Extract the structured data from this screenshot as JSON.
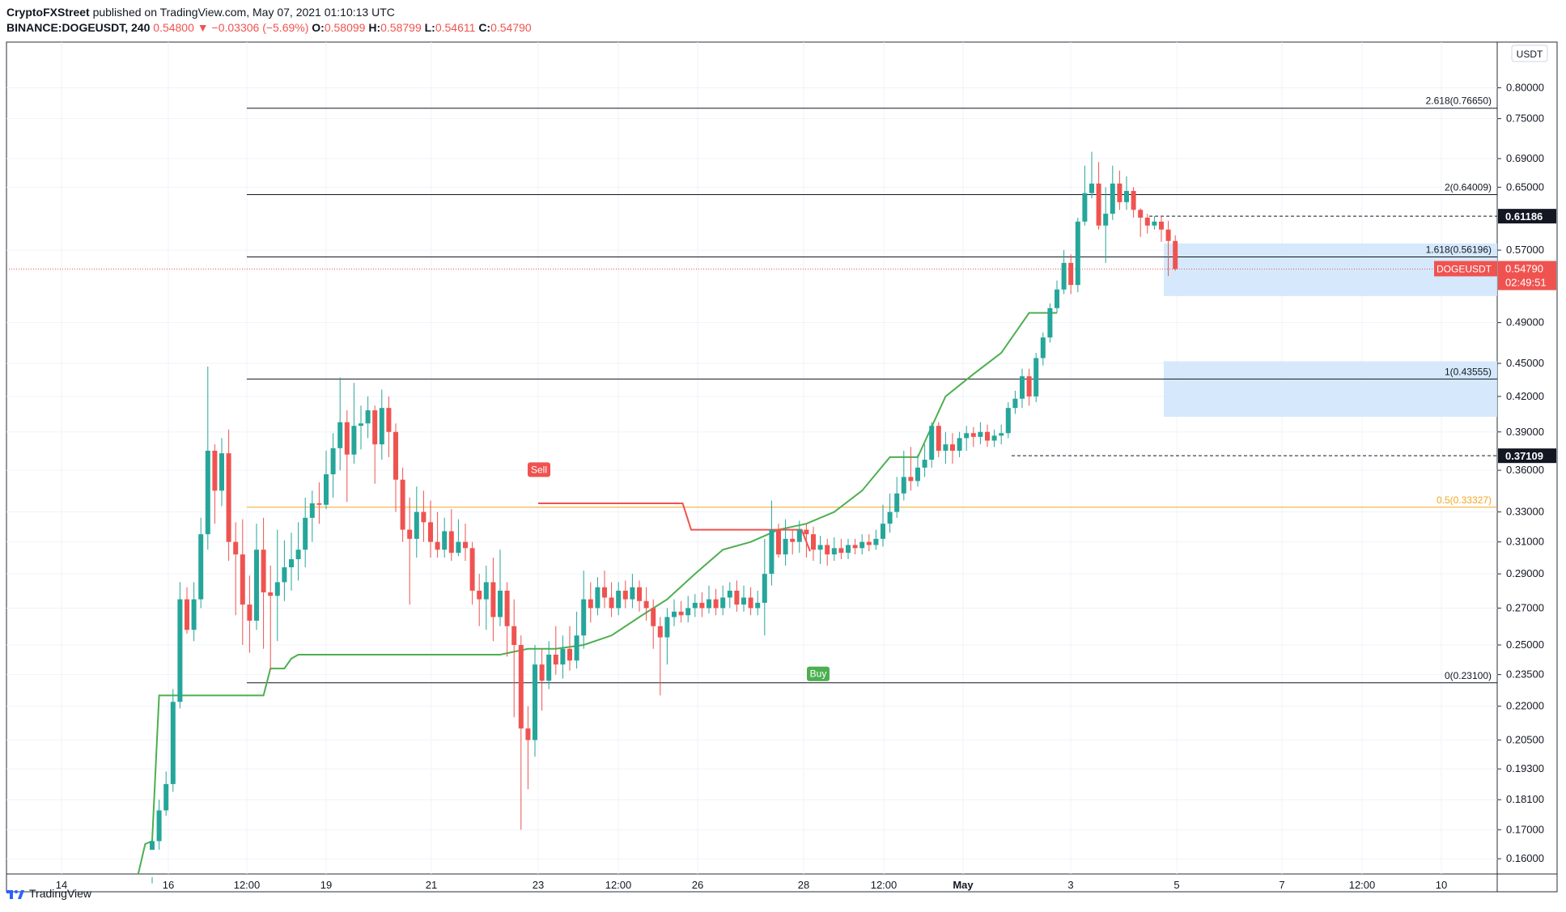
{
  "header": {
    "brand": "CryptoFXStreet",
    "published": "published on TradingView.com, May 07, 2021 01:10:13 UTC",
    "symbol": "BINANCE:DOGEUSDT, 240",
    "last": "0.54800",
    "change": "−0.03306 (−5.69%)",
    "o_label": "O:",
    "o_value": "0.58099",
    "h_label": "H:",
    "h_value": "0.58799",
    "l_label": "L:",
    "l_value": "0.54611",
    "c_label": "C:",
    "c_value": "0.54790"
  },
  "footer": {
    "logo_text": "TradingView"
  },
  "colors": {
    "up": "#26a69a",
    "down": "#ef5350",
    "support": "#4caf50",
    "resistance": "#f0524f",
    "fib05": "#f5a623",
    "zone": "#cfe5fb"
  },
  "chart_data": {
    "type": "candlestick",
    "currency": "USDT",
    "y_scale": "log",
    "y_range": [
      0.155,
      0.88
    ],
    "y_ticks": [
      "0.80000",
      "0.75000",
      "0.69000",
      "0.65000",
      "0.57000",
      "0.49000",
      "0.45000",
      "0.42000",
      "0.39000",
      "0.36000",
      "0.33000",
      "0.31000",
      "0.29000",
      "0.27000",
      "0.25000",
      "0.23500",
      "0.22000",
      "0.20500",
      "0.19300",
      "0.18100",
      "0.17000",
      "0.16000"
    ],
    "x_ticks": [
      "14",
      "16",
      "12:00",
      "19",
      "21",
      "23",
      "12:00",
      "26",
      "28",
      "12:00",
      "May",
      "3",
      "5",
      "7",
      "12:00",
      "10"
    ],
    "fib_levels": [
      {
        "label": "2.618(0.76650)",
        "value": 0.7665
      },
      {
        "label": "2(0.64009)",
        "value": 0.64009
      },
      {
        "label": "1.618(0.56196)",
        "value": 0.56196
      },
      {
        "label": "1(0.43555)",
        "value": 0.43555
      },
      {
        "label": "0.5(0.33327)",
        "value": 0.33327
      },
      {
        "label": "0(0.23100)",
        "value": 0.231
      }
    ],
    "price_labels": [
      {
        "label": "0.61186",
        "value": 0.61186
      },
      {
        "label": "0.37109",
        "value": 0.37109
      }
    ],
    "current": {
      "symbol": "DOGEUSDT",
      "value_text": "0.54790",
      "timer": "02:49:51",
      "value": 0.5479
    },
    "zones": [
      {
        "from_value": 0.5179,
        "to_value": 0.578
      },
      {
        "from_value": 0.4025,
        "to_value": 0.452
      }
    ],
    "signals": [
      {
        "label": "Sell",
        "value": 0.355
      },
      {
        "label": "Buy",
        "value": 0.241
      }
    ],
    "candles": [
      [
        0.163,
        0.166,
        0.154,
        0.152
      ],
      [
        0.166,
        0.177,
        0.181,
        0.163
      ],
      [
        0.177,
        0.187,
        0.192,
        0.175
      ],
      [
        0.187,
        0.222,
        0.228,
        0.184
      ],
      [
        0.222,
        0.275,
        0.285,
        0.219
      ],
      [
        0.275,
        0.258,
        0.282,
        0.256
      ],
      [
        0.258,
        0.275,
        0.285,
        0.252
      ],
      [
        0.275,
        0.315,
        0.326,
        0.27
      ],
      [
        0.315,
        0.375,
        0.447,
        0.305
      ],
      [
        0.375,
        0.345,
        0.38,
        0.322
      ],
      [
        0.345,
        0.373,
        0.385,
        0.334
      ],
      [
        0.373,
        0.31,
        0.392,
        0.298
      ],
      [
        0.31,
        0.302,
        0.323,
        0.266
      ],
      [
        0.302,
        0.272,
        0.325,
        0.25
      ],
      [
        0.272,
        0.263,
        0.289,
        0.246
      ],
      [
        0.263,
        0.305,
        0.322,
        0.258
      ],
      [
        0.305,
        0.279,
        0.326,
        0.248
      ],
      [
        0.279,
        0.277,
        0.295,
        0.237
      ],
      [
        0.277,
        0.285,
        0.318,
        0.252
      ],
      [
        0.285,
        0.294,
        0.311,
        0.274
      ],
      [
        0.294,
        0.299,
        0.316,
        0.28
      ],
      [
        0.299,
        0.305,
        0.323,
        0.286
      ],
      [
        0.305,
        0.326,
        0.34,
        0.294
      ],
      [
        0.326,
        0.336,
        0.345,
        0.31
      ],
      [
        0.336,
        0.335,
        0.351,
        0.322
      ],
      [
        0.335,
        0.357,
        0.375,
        0.332
      ],
      [
        0.357,
        0.377,
        0.389,
        0.34
      ],
      [
        0.377,
        0.398,
        0.437,
        0.36
      ],
      [
        0.398,
        0.372,
        0.408,
        0.337
      ],
      [
        0.372,
        0.395,
        0.432,
        0.365
      ],
      [
        0.395,
        0.397,
        0.412,
        0.376
      ],
      [
        0.397,
        0.408,
        0.42,
        0.385
      ],
      [
        0.408,
        0.38,
        0.412,
        0.35
      ],
      [
        0.38,
        0.41,
        0.426,
        0.368
      ],
      [
        0.41,
        0.39,
        0.42,
        0.37
      ],
      [
        0.39,
        0.353,
        0.397,
        0.33
      ],
      [
        0.353,
        0.318,
        0.362,
        0.31
      ],
      [
        0.318,
        0.312,
        0.34,
        0.272
      ],
      [
        0.312,
        0.33,
        0.348,
        0.3
      ],
      [
        0.33,
        0.323,
        0.345,
        0.31
      ],
      [
        0.323,
        0.31,
        0.338,
        0.3
      ],
      [
        0.31,
        0.305,
        0.33,
        0.3
      ],
      [
        0.305,
        0.317,
        0.326,
        0.3
      ],
      [
        0.317,
        0.303,
        0.332,
        0.298
      ],
      [
        0.303,
        0.31,
        0.325,
        0.301
      ],
      [
        0.31,
        0.306,
        0.322,
        0.298
      ],
      [
        0.306,
        0.28,
        0.31,
        0.272
      ],
      [
        0.28,
        0.275,
        0.29,
        0.26
      ],
      [
        0.275,
        0.285,
        0.295,
        0.258
      ],
      [
        0.285,
        0.265,
        0.3,
        0.252
      ],
      [
        0.265,
        0.28,
        0.305,
        0.26
      ],
      [
        0.28,
        0.26,
        0.285,
        0.244
      ],
      [
        0.26,
        0.25,
        0.275,
        0.215
      ],
      [
        0.25,
        0.21,
        0.255,
        0.17
      ],
      [
        0.21,
        0.205,
        0.22,
        0.185
      ],
      [
        0.205,
        0.24,
        0.25,
        0.198
      ],
      [
        0.24,
        0.232,
        0.248,
        0.218
      ],
      [
        0.232,
        0.245,
        0.252,
        0.228
      ],
      [
        0.245,
        0.24,
        0.26,
        0.235
      ],
      [
        0.24,
        0.248,
        0.255,
        0.233
      ],
      [
        0.248,
        0.242,
        0.26,
        0.237
      ],
      [
        0.242,
        0.255,
        0.268,
        0.238
      ],
      [
        0.255,
        0.275,
        0.292,
        0.248
      ],
      [
        0.275,
        0.27,
        0.285,
        0.262
      ],
      [
        0.27,
        0.282,
        0.288,
        0.266
      ],
      [
        0.282,
        0.276,
        0.292,
        0.27
      ],
      [
        0.276,
        0.27,
        0.285,
        0.265
      ],
      [
        0.27,
        0.28,
        0.285,
        0.266
      ],
      [
        0.28,
        0.275,
        0.286,
        0.27
      ],
      [
        0.275,
        0.282,
        0.29,
        0.27
      ],
      [
        0.282,
        0.274,
        0.286,
        0.268
      ],
      [
        0.274,
        0.27,
        0.282,
        0.263
      ],
      [
        0.27,
        0.26,
        0.275,
        0.248
      ],
      [
        0.26,
        0.254,
        0.265,
        0.225
      ],
      [
        0.254,
        0.265,
        0.27,
        0.24
      ],
      [
        0.265,
        0.268,
        0.275,
        0.26
      ],
      [
        0.268,
        0.266,
        0.274,
        0.262
      ],
      [
        0.266,
        0.27,
        0.277,
        0.262
      ],
      [
        0.27,
        0.273,
        0.278,
        0.265
      ],
      [
        0.273,
        0.27,
        0.279,
        0.265
      ],
      [
        0.27,
        0.275,
        0.283,
        0.267
      ],
      [
        0.275,
        0.27,
        0.281,
        0.266
      ],
      [
        0.27,
        0.276,
        0.283,
        0.266
      ],
      [
        0.276,
        0.28,
        0.285,
        0.27
      ],
      [
        0.28,
        0.272,
        0.286,
        0.268
      ],
      [
        0.272,
        0.276,
        0.283,
        0.268
      ],
      [
        0.276,
        0.27,
        0.282,
        0.266
      ],
      [
        0.27,
        0.273,
        0.28,
        0.266
      ],
      [
        0.273,
        0.29,
        0.312,
        0.255
      ],
      [
        0.29,
        0.318,
        0.338,
        0.283
      ],
      [
        0.318,
        0.302,
        0.322,
        0.3
      ],
      [
        0.302,
        0.312,
        0.325,
        0.295
      ],
      [
        0.312,
        0.31,
        0.318,
        0.302
      ],
      [
        0.31,
        0.318,
        0.324,
        0.303
      ],
      [
        0.318,
        0.315,
        0.322,
        0.3
      ],
      [
        0.315,
        0.305,
        0.32,
        0.298
      ],
      [
        0.305,
        0.308,
        0.314,
        0.296
      ],
      [
        0.308,
        0.302,
        0.312,
        0.295
      ],
      [
        0.302,
        0.306,
        0.313,
        0.298
      ],
      [
        0.306,
        0.303,
        0.312,
        0.299
      ],
      [
        0.303,
        0.308,
        0.312,
        0.299
      ],
      [
        0.308,
        0.306,
        0.312,
        0.302
      ],
      [
        0.306,
        0.31,
        0.315,
        0.302
      ],
      [
        0.31,
        0.308,
        0.315,
        0.304
      ],
      [
        0.308,
        0.312,
        0.318,
        0.305
      ],
      [
        0.312,
        0.322,
        0.335,
        0.307
      ],
      [
        0.322,
        0.33,
        0.343,
        0.316
      ],
      [
        0.33,
        0.343,
        0.355,
        0.326
      ],
      [
        0.343,
        0.355,
        0.375,
        0.338
      ],
      [
        0.355,
        0.352,
        0.378,
        0.345
      ],
      [
        0.352,
        0.362,
        0.372,
        0.348
      ],
      [
        0.362,
        0.368,
        0.38,
        0.355
      ],
      [
        0.368,
        0.395,
        0.398,
        0.362
      ],
      [
        0.395,
        0.375,
        0.398,
        0.37
      ],
      [
        0.375,
        0.38,
        0.39,
        0.365
      ],
      [
        0.38,
        0.375,
        0.389,
        0.365
      ],
      [
        0.375,
        0.385,
        0.39,
        0.37
      ],
      [
        0.385,
        0.389,
        0.395,
        0.375
      ],
      [
        0.389,
        0.386,
        0.394,
        0.378
      ],
      [
        0.386,
        0.39,
        0.398,
        0.38
      ],
      [
        0.39,
        0.383,
        0.396,
        0.378
      ],
      [
        0.383,
        0.387,
        0.392,
        0.378
      ],
      [
        0.387,
        0.389,
        0.396,
        0.38
      ],
      [
        0.389,
        0.41,
        0.415,
        0.385
      ],
      [
        0.41,
        0.418,
        0.425,
        0.405
      ],
      [
        0.418,
        0.438,
        0.445,
        0.41
      ],
      [
        0.438,
        0.42,
        0.445,
        0.412
      ],
      [
        0.42,
        0.455,
        0.46,
        0.415
      ],
      [
        0.455,
        0.475,
        0.48,
        0.448
      ],
      [
        0.475,
        0.505,
        0.51,
        0.47
      ],
      [
        0.505,
        0.525,
        0.535,
        0.5
      ],
      [
        0.525,
        0.555,
        0.57,
        0.52
      ],
      [
        0.555,
        0.53,
        0.565,
        0.52
      ],
      [
        0.53,
        0.605,
        0.61,
        0.522
      ],
      [
        0.605,
        0.642,
        0.68,
        0.6
      ],
      [
        0.642,
        0.655,
        0.7,
        0.635
      ],
      [
        0.655,
        0.6,
        0.685,
        0.595
      ],
      [
        0.6,
        0.615,
        0.65,
        0.555
      ],
      [
        0.615,
        0.655,
        0.68,
        0.607
      ],
      [
        0.655,
        0.63,
        0.673,
        0.62
      ],
      [
        0.63,
        0.645,
        0.665,
        0.62
      ],
      [
        0.645,
        0.62,
        0.65,
        0.61
      ],
      [
        0.62,
        0.61,
        0.622,
        0.586
      ],
      [
        0.61,
        0.6,
        0.615,
        0.59
      ],
      [
        0.6,
        0.605,
        0.612,
        0.595
      ],
      [
        0.605,
        0.595,
        0.612,
        0.58
      ],
      [
        0.595,
        0.581,
        0.606,
        0.54
      ],
      [
        0.581,
        0.548,
        0.588,
        0.546
      ]
    ],
    "support_line": [
      [
        0.155,
        0.165,
        0.166,
        0.225,
        0.225,
        0.225,
        0.225,
        0.225,
        0.225,
        0.225,
        0.225,
        0.225,
        0.225,
        0.225,
        0.225,
        0.225,
        0.225,
        0.225,
        0.225,
        0.238,
        0.238,
        0.238,
        0.243,
        0.245,
        0.245,
        0.245,
        0.245,
        0.245,
        0.245,
        0.245,
        0.245,
        0.245,
        0.245,
        0.245,
        0.245,
        0.245,
        0.245,
        0.245,
        0.245,
        0.245,
        0.245,
        0.245,
        0.245,
        0.245,
        0.245,
        0.245,
        0.245,
        0.245,
        0.245,
        0.245,
        0.245,
        0.245
      ]
    ],
    "resistance_line": [
      0.336,
      0.336,
      0.336,
      0.336,
      0.336,
      0.336,
      0.336,
      0.336,
      0.336,
      0.336,
      0.336,
      0.336,
      0.336,
      0.336,
      0.336,
      0.336,
      0.336,
      0.336,
      0.318,
      0.318,
      0.318,
      0.318,
      0.318,
      0.318,
      0.318,
      0.318,
      0.318,
      0.318,
      0.318,
      0.318,
      0.318,
      0.318,
      0.304
    ]
  }
}
